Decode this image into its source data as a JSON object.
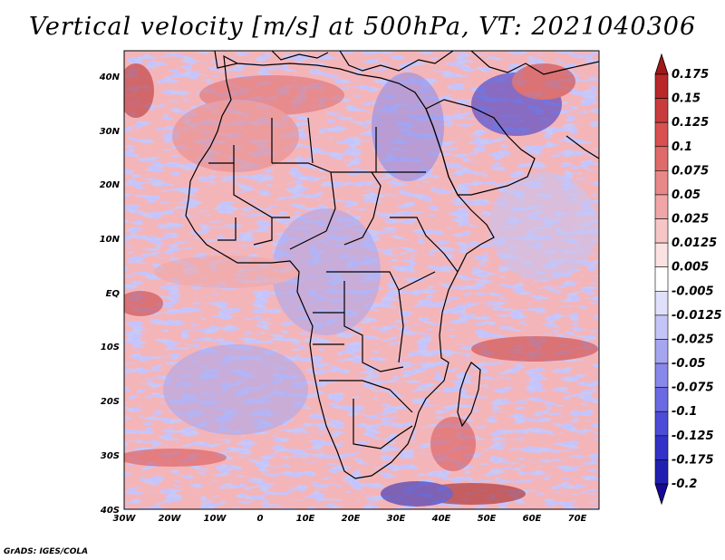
{
  "title": "Vertical velocity [m/s] at 500hPa, VT: 2021040306",
  "credit": "GrADS: IGES/COLA",
  "map": {
    "lon_range": [
      -30,
      75
    ],
    "lat_range": [
      -40,
      45
    ],
    "lon_ticks": [
      "30W",
      "20W",
      "10W",
      "0",
      "10E",
      "20E",
      "30E",
      "40E",
      "50E",
      "60E",
      "70E"
    ],
    "lat_ticks": [
      "40N",
      "30N",
      "20N",
      "10N",
      "EQ",
      "10S",
      "20S",
      "30S",
      "40S"
    ]
  },
  "colorbar": {
    "labels": [
      "0.175",
      "0.15",
      "0.125",
      "0.1",
      "0.075",
      "0.05",
      "0.025",
      "0.0125",
      "0.005",
      "-0.005",
      "-0.0125",
      "-0.025",
      "-0.05",
      "-0.075",
      "-0.1",
      "-0.125",
      "-0.175",
      "-0.2"
    ],
    "colors": [
      "#a01818",
      "#b82828",
      "#c83c3c",
      "#d85050",
      "#e06a6a",
      "#e88888",
      "#f0a6a6",
      "#f6c6c6",
      "#fbe2e2",
      "#ffffff",
      "#e0e0fb",
      "#c4c4f6",
      "#a6a6f0",
      "#8888ea",
      "#6a6ae2",
      "#4c4cd8",
      "#3232c8",
      "#2020b0",
      "#180898"
    ]
  }
}
